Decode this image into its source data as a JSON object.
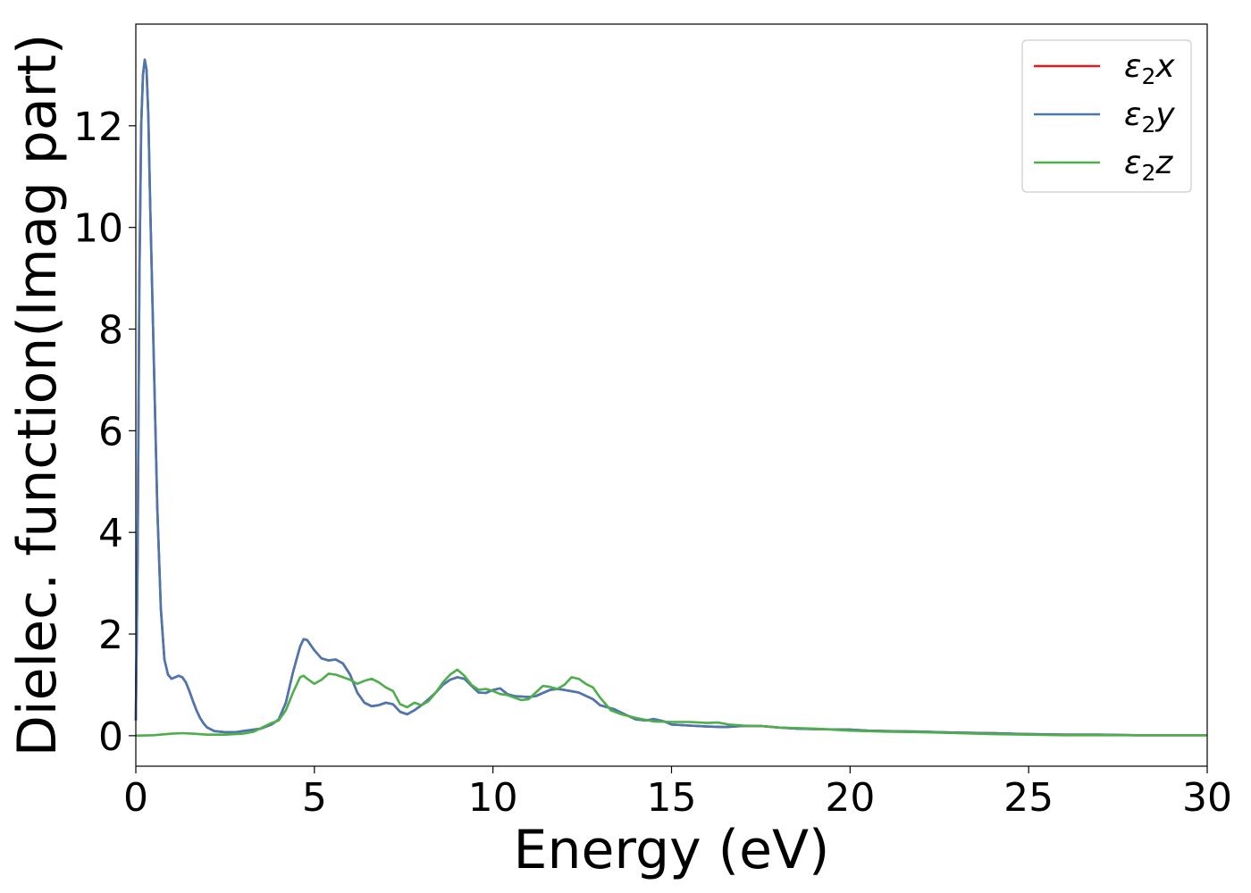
{
  "chart_data": {
    "type": "line",
    "title": "",
    "xlabel": "Energy (eV)",
    "ylabel": "Dielec. function(Imag part)",
    "xlim": [
      0,
      30
    ],
    "ylim": [
      -0.6,
      14
    ],
    "xticks": [
      0,
      5,
      10,
      15,
      20,
      25,
      30
    ],
    "yticks": [
      0,
      2,
      4,
      6,
      8,
      10,
      12
    ],
    "grid": false,
    "legend_position": "top-right",
    "series": [
      {
        "name": "x",
        "color": "#e41a1c",
        "points": [
          [
            0,
            0.3
          ],
          [
            0.05,
            3.5
          ],
          [
            0.1,
            9.0
          ],
          [
            0.15,
            12.0
          ],
          [
            0.2,
            13.0
          ],
          [
            0.25,
            13.3
          ],
          [
            0.3,
            13.1
          ],
          [
            0.35,
            12.2
          ],
          [
            0.4,
            10.5
          ],
          [
            0.5,
            7.5
          ],
          [
            0.6,
            4.5
          ],
          [
            0.7,
            2.5
          ],
          [
            0.8,
            1.5
          ],
          [
            0.9,
            1.2
          ],
          [
            1.0,
            1.12
          ],
          [
            1.1,
            1.15
          ],
          [
            1.2,
            1.18
          ],
          [
            1.3,
            1.15
          ],
          [
            1.4,
            1.05
          ],
          [
            1.5,
            0.88
          ],
          [
            1.6,
            0.68
          ],
          [
            1.7,
            0.5
          ],
          [
            1.8,
            0.35
          ],
          [
            1.9,
            0.24
          ],
          [
            2.0,
            0.16
          ],
          [
            2.2,
            0.09
          ],
          [
            2.5,
            0.07
          ],
          [
            2.8,
            0.07
          ],
          [
            3.0,
            0.09
          ],
          [
            3.3,
            0.12
          ],
          [
            3.5,
            0.14
          ],
          [
            3.8,
            0.22
          ],
          [
            4.0,
            0.32
          ],
          [
            4.2,
            0.65
          ],
          [
            4.4,
            1.25
          ],
          [
            4.6,
            1.75
          ],
          [
            4.7,
            1.9
          ],
          [
            4.8,
            1.88
          ],
          [
            5.0,
            1.68
          ],
          [
            5.2,
            1.52
          ],
          [
            5.4,
            1.48
          ],
          [
            5.6,
            1.5
          ],
          [
            5.8,
            1.42
          ],
          [
            6.0,
            1.2
          ],
          [
            6.2,
            0.85
          ],
          [
            6.4,
            0.65
          ],
          [
            6.6,
            0.58
          ],
          [
            6.8,
            0.6
          ],
          [
            7.0,
            0.65
          ],
          [
            7.2,
            0.62
          ],
          [
            7.4,
            0.47
          ],
          [
            7.6,
            0.42
          ],
          [
            7.8,
            0.5
          ],
          [
            8.0,
            0.6
          ],
          [
            8.2,
            0.72
          ],
          [
            8.4,
            0.85
          ],
          [
            8.6,
            1.0
          ],
          [
            8.8,
            1.1
          ],
          [
            9.0,
            1.15
          ],
          [
            9.2,
            1.12
          ],
          [
            9.4,
            0.98
          ],
          [
            9.6,
            0.85
          ],
          [
            9.8,
            0.84
          ],
          [
            10.0,
            0.9
          ],
          [
            10.2,
            0.93
          ],
          [
            10.4,
            0.82
          ],
          [
            10.6,
            0.78
          ],
          [
            10.8,
            0.77
          ],
          [
            11.0,
            0.76
          ],
          [
            11.2,
            0.78
          ],
          [
            11.4,
            0.84
          ],
          [
            11.6,
            0.9
          ],
          [
            11.8,
            0.92
          ],
          [
            12.0,
            0.9
          ],
          [
            12.4,
            0.85
          ],
          [
            12.8,
            0.72
          ],
          [
            13.0,
            0.6
          ],
          [
            13.4,
            0.52
          ],
          [
            13.6,
            0.45
          ],
          [
            14.0,
            0.32
          ],
          [
            14.3,
            0.3
          ],
          [
            14.5,
            0.33
          ],
          [
            14.8,
            0.28
          ],
          [
            15.0,
            0.22
          ],
          [
            15.5,
            0.2
          ],
          [
            16.0,
            0.18
          ],
          [
            16.5,
            0.17
          ],
          [
            17.0,
            0.19
          ],
          [
            17.5,
            0.19
          ],
          [
            18.0,
            0.16
          ],
          [
            18.5,
            0.14
          ],
          [
            19.0,
            0.13
          ],
          [
            20.0,
            0.12
          ],
          [
            20.5,
            0.1
          ],
          [
            21.0,
            0.09
          ],
          [
            22.0,
            0.08
          ],
          [
            22.5,
            0.07
          ],
          [
            23.0,
            0.06
          ],
          [
            24.0,
            0.05
          ],
          [
            25.0,
            0.03
          ],
          [
            26.0,
            0.02
          ],
          [
            27.0,
            0.02
          ],
          [
            28.0,
            0.01
          ],
          [
            30.0,
            0.01
          ]
        ]
      },
      {
        "name": "y",
        "color": "#4878b2",
        "points": [
          [
            0,
            0.3
          ],
          [
            0.05,
            3.5
          ],
          [
            0.1,
            9.0
          ],
          [
            0.15,
            12.0
          ],
          [
            0.2,
            13.0
          ],
          [
            0.25,
            13.3
          ],
          [
            0.3,
            13.1
          ],
          [
            0.35,
            12.2
          ],
          [
            0.4,
            10.5
          ],
          [
            0.5,
            7.5
          ],
          [
            0.6,
            4.5
          ],
          [
            0.7,
            2.5
          ],
          [
            0.8,
            1.5
          ],
          [
            0.9,
            1.2
          ],
          [
            1.0,
            1.12
          ],
          [
            1.1,
            1.15
          ],
          [
            1.2,
            1.18
          ],
          [
            1.3,
            1.15
          ],
          [
            1.4,
            1.05
          ],
          [
            1.5,
            0.88
          ],
          [
            1.6,
            0.68
          ],
          [
            1.7,
            0.5
          ],
          [
            1.8,
            0.35
          ],
          [
            1.9,
            0.24
          ],
          [
            2.0,
            0.16
          ],
          [
            2.2,
            0.09
          ],
          [
            2.5,
            0.07
          ],
          [
            2.8,
            0.07
          ],
          [
            3.0,
            0.09
          ],
          [
            3.3,
            0.12
          ],
          [
            3.5,
            0.14
          ],
          [
            3.8,
            0.22
          ],
          [
            4.0,
            0.32
          ],
          [
            4.2,
            0.65
          ],
          [
            4.4,
            1.25
          ],
          [
            4.6,
            1.75
          ],
          [
            4.7,
            1.9
          ],
          [
            4.8,
            1.88
          ],
          [
            5.0,
            1.68
          ],
          [
            5.2,
            1.52
          ],
          [
            5.4,
            1.48
          ],
          [
            5.6,
            1.5
          ],
          [
            5.8,
            1.42
          ],
          [
            6.0,
            1.2
          ],
          [
            6.2,
            0.85
          ],
          [
            6.4,
            0.65
          ],
          [
            6.6,
            0.58
          ],
          [
            6.8,
            0.6
          ],
          [
            7.0,
            0.65
          ],
          [
            7.2,
            0.62
          ],
          [
            7.4,
            0.47
          ],
          [
            7.6,
            0.42
          ],
          [
            7.8,
            0.5
          ],
          [
            8.0,
            0.6
          ],
          [
            8.2,
            0.72
          ],
          [
            8.4,
            0.85
          ],
          [
            8.6,
            1.0
          ],
          [
            8.8,
            1.1
          ],
          [
            9.0,
            1.15
          ],
          [
            9.2,
            1.12
          ],
          [
            9.4,
            0.98
          ],
          [
            9.6,
            0.85
          ],
          [
            9.8,
            0.84
          ],
          [
            10.0,
            0.9
          ],
          [
            10.2,
            0.93
          ],
          [
            10.4,
            0.82
          ],
          [
            10.6,
            0.78
          ],
          [
            10.8,
            0.77
          ],
          [
            11.0,
            0.76
          ],
          [
            11.2,
            0.78
          ],
          [
            11.4,
            0.84
          ],
          [
            11.6,
            0.9
          ],
          [
            11.8,
            0.92
          ],
          [
            12.0,
            0.9
          ],
          [
            12.4,
            0.85
          ],
          [
            12.8,
            0.72
          ],
          [
            13.0,
            0.6
          ],
          [
            13.4,
            0.52
          ],
          [
            13.6,
            0.45
          ],
          [
            14.0,
            0.32
          ],
          [
            14.3,
            0.3
          ],
          [
            14.5,
            0.33
          ],
          [
            14.8,
            0.28
          ],
          [
            15.0,
            0.22
          ],
          [
            15.5,
            0.2
          ],
          [
            16.0,
            0.18
          ],
          [
            16.5,
            0.17
          ],
          [
            17.0,
            0.19
          ],
          [
            17.5,
            0.19
          ],
          [
            18.0,
            0.16
          ],
          [
            18.5,
            0.14
          ],
          [
            19.0,
            0.13
          ],
          [
            20.0,
            0.12
          ],
          [
            20.5,
            0.1
          ],
          [
            21.0,
            0.09
          ],
          [
            22.0,
            0.08
          ],
          [
            22.5,
            0.07
          ],
          [
            23.0,
            0.06
          ],
          [
            24.0,
            0.05
          ],
          [
            25.0,
            0.03
          ],
          [
            26.0,
            0.02
          ],
          [
            27.0,
            0.02
          ],
          [
            28.0,
            0.01
          ],
          [
            30.0,
            0.01
          ]
        ]
      },
      {
        "name": "z",
        "color": "#4daf4a",
        "points": [
          [
            0,
            0.0
          ],
          [
            0.5,
            0.01
          ],
          [
            1.0,
            0.04
          ],
          [
            1.3,
            0.05
          ],
          [
            1.6,
            0.04
          ],
          [
            2.0,
            0.02
          ],
          [
            2.5,
            0.02
          ],
          [
            3.0,
            0.04
          ],
          [
            3.3,
            0.08
          ],
          [
            3.6,
            0.18
          ],
          [
            3.8,
            0.25
          ],
          [
            4.0,
            0.3
          ],
          [
            4.2,
            0.5
          ],
          [
            4.4,
            0.85
          ],
          [
            4.6,
            1.15
          ],
          [
            4.7,
            1.18
          ],
          [
            4.8,
            1.12
          ],
          [
            5.0,
            1.02
          ],
          [
            5.2,
            1.1
          ],
          [
            5.4,
            1.22
          ],
          [
            5.6,
            1.2
          ],
          [
            5.8,
            1.15
          ],
          [
            6.0,
            1.1
          ],
          [
            6.2,
            1.02
          ],
          [
            6.4,
            1.08
          ],
          [
            6.6,
            1.12
          ],
          [
            6.8,
            1.05
          ],
          [
            7.0,
            0.95
          ],
          [
            7.2,
            0.88
          ],
          [
            7.4,
            0.62
          ],
          [
            7.6,
            0.56
          ],
          [
            7.8,
            0.65
          ],
          [
            8.0,
            0.6
          ],
          [
            8.2,
            0.68
          ],
          [
            8.4,
            0.85
          ],
          [
            8.6,
            1.05
          ],
          [
            8.8,
            1.2
          ],
          [
            9.0,
            1.3
          ],
          [
            9.2,
            1.18
          ],
          [
            9.4,
            1.0
          ],
          [
            9.6,
            0.9
          ],
          [
            9.8,
            0.92
          ],
          [
            10.0,
            0.88
          ],
          [
            10.2,
            0.82
          ],
          [
            10.4,
            0.8
          ],
          [
            10.6,
            0.75
          ],
          [
            10.8,
            0.7
          ],
          [
            11.0,
            0.72
          ],
          [
            11.2,
            0.85
          ],
          [
            11.4,
            0.98
          ],
          [
            11.6,
            0.96
          ],
          [
            11.8,
            0.92
          ],
          [
            12.0,
            1.0
          ],
          [
            12.2,
            1.15
          ],
          [
            12.4,
            1.12
          ],
          [
            12.6,
            1.02
          ],
          [
            12.8,
            0.95
          ],
          [
            13.0,
            0.75
          ],
          [
            13.3,
            0.5
          ],
          [
            13.6,
            0.42
          ],
          [
            14.0,
            0.35
          ],
          [
            14.5,
            0.28
          ],
          [
            15.0,
            0.27
          ],
          [
            15.5,
            0.27
          ],
          [
            16.0,
            0.25
          ],
          [
            16.3,
            0.26
          ],
          [
            16.6,
            0.22
          ],
          [
            17.0,
            0.2
          ],
          [
            17.5,
            0.19
          ],
          [
            18.0,
            0.16
          ],
          [
            18.5,
            0.15
          ],
          [
            19.0,
            0.14
          ],
          [
            20.0,
            0.1
          ],
          [
            21.0,
            0.08
          ],
          [
            22.0,
            0.07
          ],
          [
            23.0,
            0.05
          ],
          [
            24.0,
            0.03
          ],
          [
            25.0,
            0.02
          ],
          [
            26.0,
            0.01
          ],
          [
            28.0,
            0.01
          ],
          [
            30.0,
            0.01
          ]
        ]
      }
    ]
  }
}
